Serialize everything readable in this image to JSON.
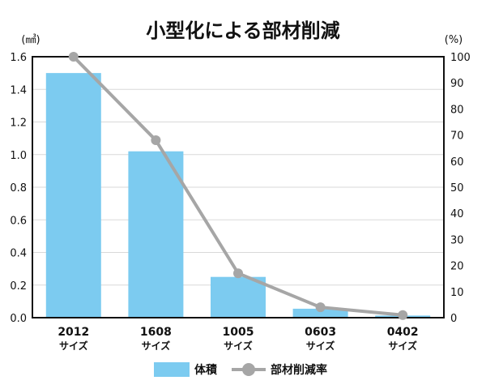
{
  "chart_data": {
    "type": "bar",
    "title": "小型化による部材削減",
    "categories": [
      {
        "line1": "2012",
        "line2": "サイズ"
      },
      {
        "line1": "1608",
        "line2": "サイズ"
      },
      {
        "line1": "1005",
        "line2": "サイズ"
      },
      {
        "line1": "0603",
        "line2": "サイズ"
      },
      {
        "line1": "0402",
        "line2": "サイズ"
      }
    ],
    "left_axis": {
      "unit": "(㎣)",
      "ylim": [
        0,
        1.6
      ],
      "ticks": [
        "0.0",
        "0.2",
        "0.4",
        "0.6",
        "0.8",
        "1.0",
        "1.2",
        "1.4",
        "1.6"
      ]
    },
    "right_axis": {
      "unit": "(%)",
      "ylim": [
        0,
        100
      ],
      "ticks": [
        "0",
        "10",
        "20",
        "30",
        "40",
        "50",
        "60",
        "70",
        "80",
        "90",
        "100"
      ]
    },
    "series": [
      {
        "name": "体積",
        "type": "bar",
        "axis": "left",
        "color": "#7ccbf0",
        "values": [
          1.5,
          1.02,
          0.25,
          0.055,
          0.013
        ]
      },
      {
        "name": "部材削減率",
        "type": "line",
        "axis": "right",
        "color": "#a6a6a6",
        "values": [
          100,
          68,
          17,
          4,
          1
        ]
      }
    ],
    "grid": true,
    "legend": "bottom-center"
  }
}
